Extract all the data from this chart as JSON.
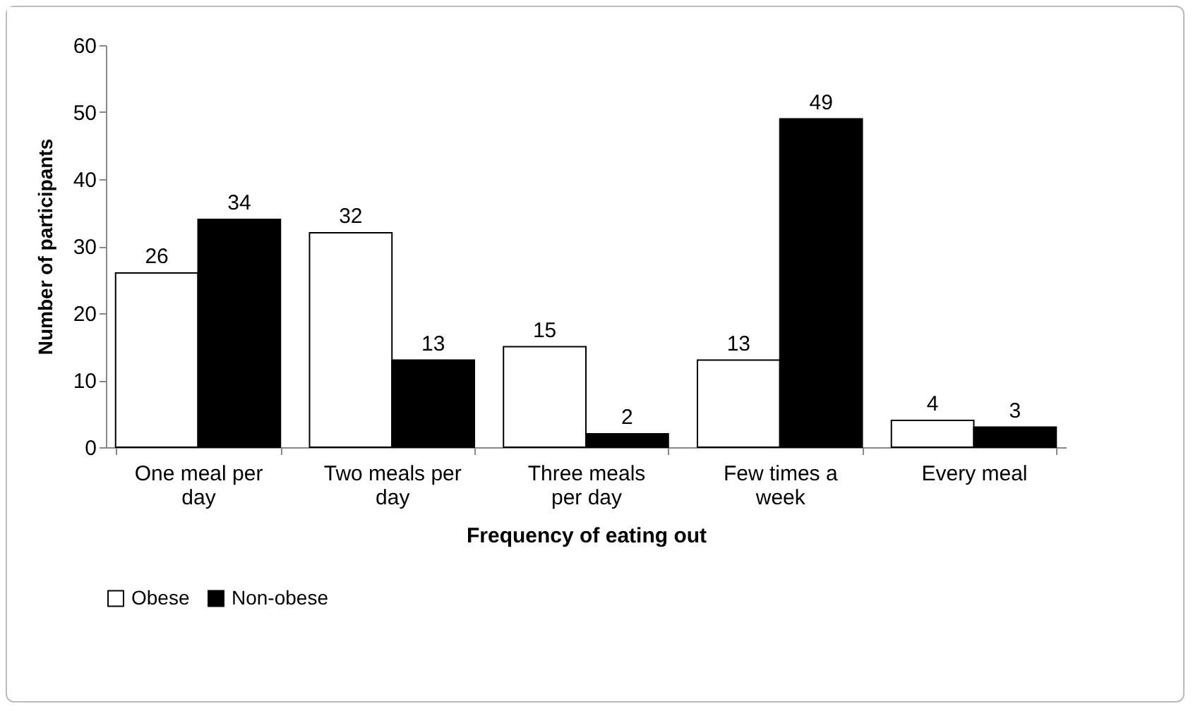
{
  "chart_data": {
    "type": "bar",
    "xlabel": "Frequency of eating out",
    "ylabel": "Number of participants",
    "categories": [
      "One meal per day",
      "Two meals per day",
      "Three meals per day",
      "Few times a week",
      "Every meal"
    ],
    "series": [
      {
        "name": "Obese",
        "color": "#ffffff",
        "values": [
          26,
          32,
          15,
          13,
          4
        ]
      },
      {
        "name": "Non-obese",
        "color": "#000000",
        "values": [
          34,
          13,
          2,
          49,
          3
        ]
      }
    ],
    "ylim": [
      0,
      60
    ],
    "yticks": [
      0,
      10,
      20,
      30,
      40,
      50,
      60
    ],
    "data_labels": true,
    "legend": "bottom"
  }
}
